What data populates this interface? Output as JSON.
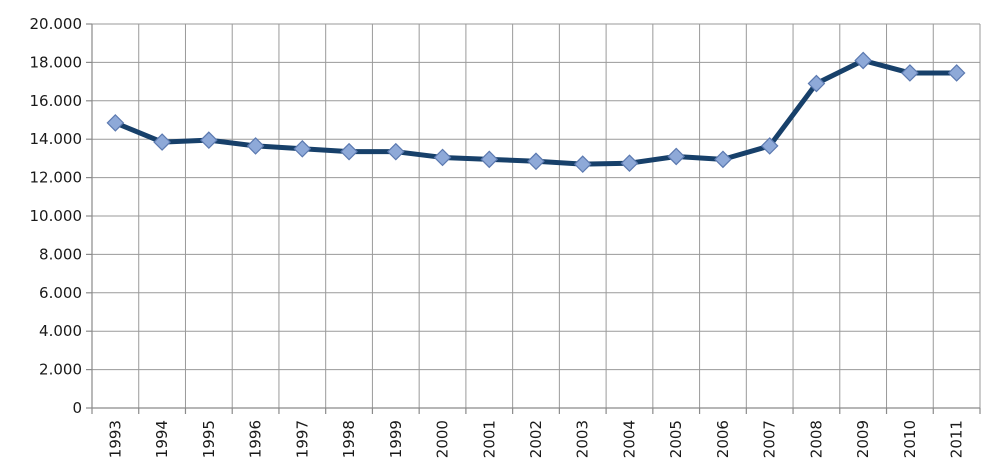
{
  "chart_data": {
    "type": "line",
    "title": "",
    "xlabel": "",
    "ylabel": "",
    "categories": [
      "1993",
      "1994",
      "1995",
      "1996",
      "1997",
      "1998",
      "1999",
      "2000",
      "2001",
      "2002",
      "2003",
      "2004",
      "2005",
      "2006",
      "2007",
      "2008",
      "2009",
      "2010",
      "2011"
    ],
    "series": [
      {
        "values": [
          14850,
          13850,
          13950,
          13650,
          13500,
          13350,
          13350,
          13050,
          12950,
          12850,
          12700,
          12750,
          13100,
          12950,
          13650,
          16900,
          18100,
          17450,
          17450
        ]
      }
    ],
    "ylim": [
      0,
      20000
    ],
    "yticks": [
      0,
      2000,
      4000,
      6000,
      8000,
      10000,
      12000,
      14000,
      16000,
      18000,
      20000
    ],
    "ytick_labels": [
      "0",
      "2.000",
      "4.000",
      "6.000",
      "8.000",
      "10.000",
      "12.000",
      "14.000",
      "16.000",
      "18.000",
      "20.000"
    ],
    "grid": true,
    "legend": "none",
    "colors": {
      "line": "#17406a",
      "marker_fill": "#8ea9d8",
      "marker_stroke": "#5b79b0",
      "grid": "#9a9a9a"
    }
  }
}
